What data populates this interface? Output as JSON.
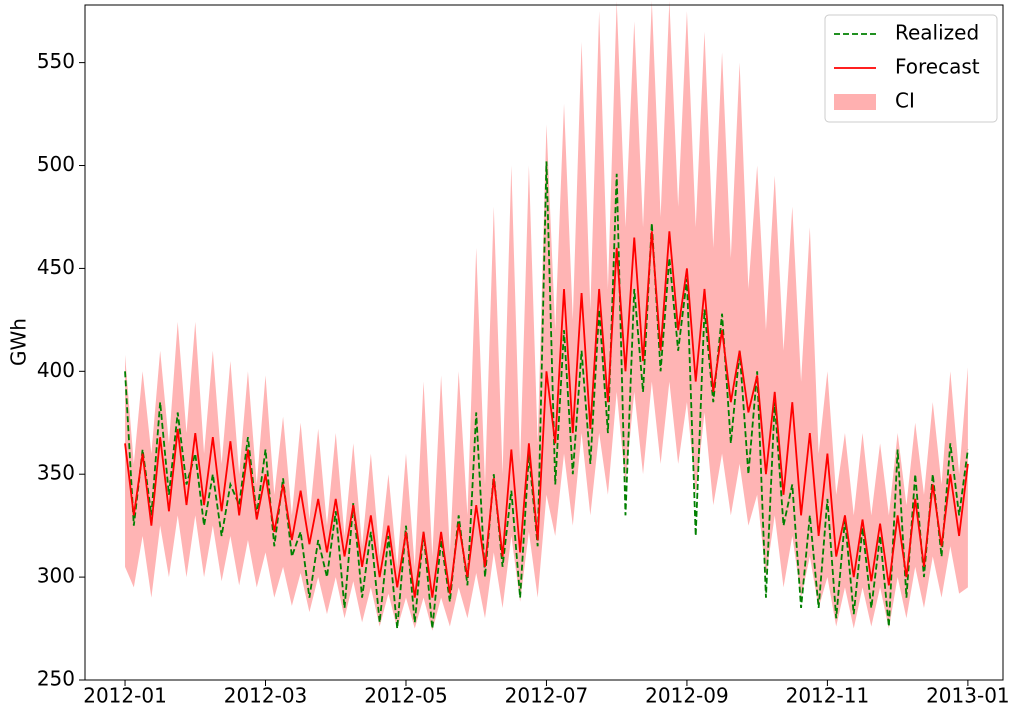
{
  "chart_data": {
    "type": "line",
    "ylabel": "GWh",
    "xlim": [
      -0.57,
      12.5
    ],
    "xticks": [
      {
        "value": 0,
        "label": "2012-01"
      },
      {
        "value": 2,
        "label": "2012-03"
      },
      {
        "value": 4,
        "label": "2012-05"
      },
      {
        "value": 6,
        "label": "2012-07"
      },
      {
        "value": 8,
        "label": "2012-09"
      },
      {
        "value": 10,
        "label": "2012-11"
      },
      {
        "value": 12,
        "label": "2013-01"
      }
    ],
    "ylim": [
      250,
      578
    ],
    "yticks": [
      250,
      300,
      350,
      400,
      450,
      500,
      550
    ],
    "legend": "upper right",
    "x": [
      0,
      0.125,
      0.25,
      0.375,
      0.5,
      0.625,
      0.75,
      0.875,
      1,
      1.125,
      1.25,
      1.375,
      1.5,
      1.625,
      1.75,
      1.875,
      2,
      2.125,
      2.25,
      2.375,
      2.5,
      2.625,
      2.75,
      2.875,
      3,
      3.125,
      3.25,
      3.375,
      3.5,
      3.625,
      3.75,
      3.875,
      4,
      4.125,
      4.25,
      4.375,
      4.5,
      4.625,
      4.75,
      4.875,
      5,
      5.125,
      5.25,
      5.375,
      5.5,
      5.625,
      5.75,
      5.875,
      6,
      6.125,
      6.25,
      6.375,
      6.5,
      6.625,
      6.75,
      6.875,
      7,
      7.125,
      7.25,
      7.375,
      7.5,
      7.625,
      7.75,
      7.875,
      8,
      8.125,
      8.25,
      8.375,
      8.5,
      8.625,
      8.75,
      8.875,
      9,
      9.125,
      9.25,
      9.375,
      9.5,
      9.625,
      9.75,
      9.875,
      10,
      10.125,
      10.25,
      10.375,
      10.5,
      10.625,
      10.75,
      10.875,
      11,
      11.125,
      11.25,
      11.375,
      11.5,
      11.625,
      11.75,
      11.875,
      12
    ],
    "series": [
      {
        "name": "Realized",
        "color": "green",
        "style": "dashed",
        "values": [
          400,
          325,
          362,
          330,
          385,
          340,
          380,
          345,
          360,
          325,
          350,
          320,
          345,
          335,
          368,
          330,
          362,
          315,
          348,
          310,
          322,
          290,
          318,
          300,
          332,
          285,
          336,
          290,
          322,
          278,
          320,
          275,
          325,
          278,
          322,
          275,
          318,
          288,
          330,
          296,
          380,
          300,
          350,
          305,
          342,
          290,
          360,
          315,
          502,
          345,
          420,
          350,
          410,
          355,
          430,
          370,
          496,
          330,
          440,
          390,
          472,
          400,
          455,
          410,
          445,
          320,
          430,
          385,
          428,
          365,
          410,
          350,
          400,
          290,
          385,
          325,
          345,
          285,
          330,
          285,
          338,
          280,
          328,
          282,
          324,
          285,
          320,
          276,
          362,
          290,
          350,
          300,
          350,
          310,
          365,
          330,
          362
        ]
      },
      {
        "name": "Forecast",
        "color": "red",
        "style": "solid",
        "values": [
          365,
          330,
          360,
          325,
          368,
          332,
          372,
          335,
          370,
          335,
          368,
          332,
          366,
          330,
          362,
          328,
          350,
          322,
          345,
          318,
          342,
          316,
          338,
          312,
          338,
          310,
          335,
          305,
          330,
          300,
          325,
          295,
          322,
          290,
          322,
          290,
          322,
          292,
          326,
          300,
          335,
          305,
          348,
          310,
          362,
          312,
          365,
          318,
          400,
          365,
          440,
          370,
          438,
          372,
          440,
          385,
          460,
          400,
          465,
          405,
          468,
          410,
          468,
          420,
          450,
          395,
          440,
          390,
          420,
          385,
          410,
          380,
          398,
          350,
          390,
          340,
          385,
          330,
          370,
          320,
          360,
          310,
          330,
          300,
          328,
          298,
          326,
          296,
          330,
          300,
          338,
          305,
          345,
          315,
          350,
          320,
          355
        ]
      },
      {
        "name": "CI",
        "color": "#ffb0b0",
        "style": "band",
        "upper": [
          408,
          355,
          400,
          360,
          410,
          365,
          424,
          370,
          424,
          360,
          410,
          355,
          405,
          350,
          400,
          345,
          398,
          340,
          378,
          330,
          375,
          328,
          372,
          325,
          370,
          320,
          365,
          315,
          360,
          310,
          350,
          305,
          360,
          305,
          395,
          310,
          398,
          312,
          400,
          330,
          460,
          345,
          480,
          350,
          500,
          355,
          500,
          365,
          520,
          420,
          530,
          425,
          560,
          430,
          575,
          440,
          580,
          470,
          570,
          470,
          580,
          475,
          580,
          480,
          575,
          470,
          565,
          460,
          555,
          455,
          550,
          440,
          500,
          420,
          495,
          410,
          480,
          395,
          470,
          360,
          400,
          340,
          370,
          330,
          370,
          330,
          365,
          330,
          370,
          335,
          375,
          340,
          385,
          345,
          400,
          350,
          402
        ],
        "lower": [
          305,
          295,
          320,
          290,
          325,
          300,
          330,
          300,
          330,
          300,
          325,
          298,
          320,
          296,
          318,
          295,
          312,
          290,
          305,
          286,
          302,
          283,
          300,
          282,
          300,
          280,
          298,
          278,
          295,
          276,
          292,
          275,
          290,
          275,
          290,
          274,
          290,
          276,
          295,
          280,
          302,
          280,
          312,
          285,
          320,
          288,
          322,
          290,
          340,
          320,
          360,
          325,
          370,
          330,
          370,
          340,
          390,
          345,
          390,
          350,
          395,
          355,
          395,
          355,
          385,
          340,
          380,
          335,
          360,
          330,
          355,
          325,
          340,
          300,
          330,
          295,
          320,
          290,
          310,
          285,
          300,
          276,
          295,
          275,
          295,
          276,
          295,
          275,
          300,
          280,
          305,
          285,
          310,
          290,
          315,
          292,
          295
        ]
      }
    ]
  }
}
